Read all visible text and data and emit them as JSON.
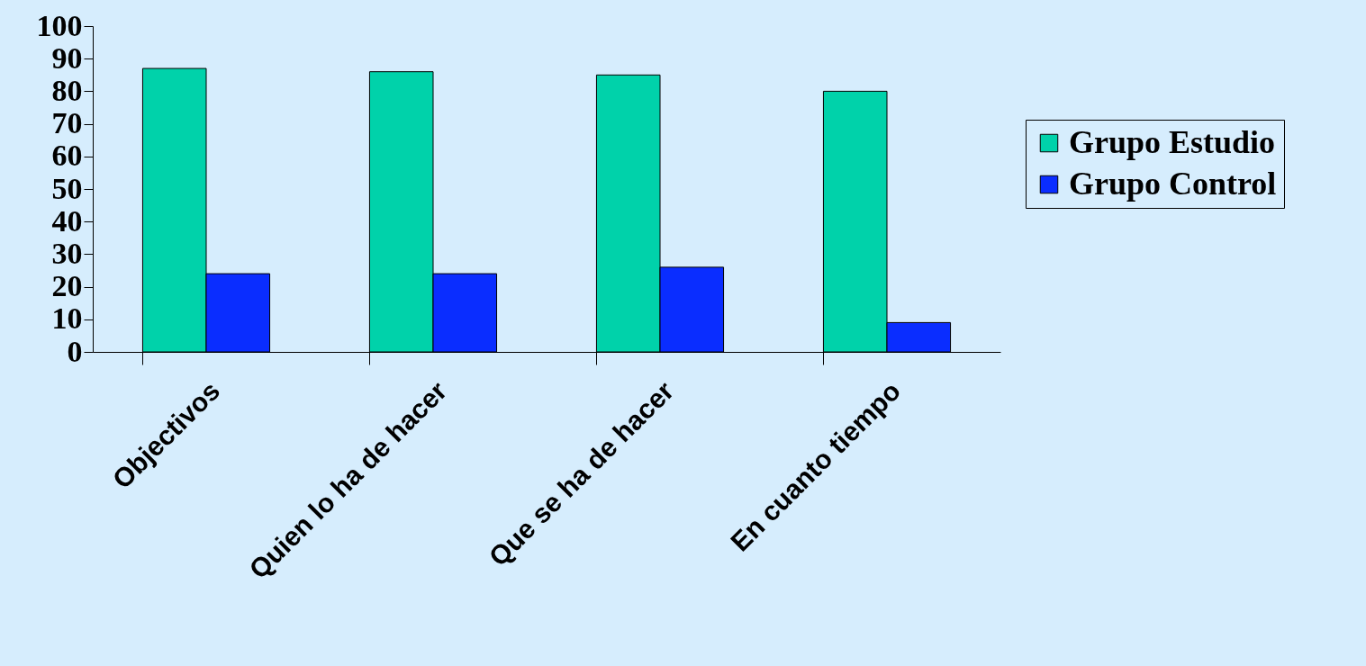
{
  "chart_data": {
    "type": "bar",
    "categories": [
      "Objectivos",
      "Quien lo ha de hacer",
      "Que se ha de hacer",
      "En cuanto tiempo"
    ],
    "series": [
      {
        "name": "Grupo Estudio",
        "color": "#00d2aa",
        "values": [
          87,
          86,
          85,
          80
        ]
      },
      {
        "name": "Grupo Control",
        "color": "#0a2dff",
        "values": [
          24,
          24,
          26,
          9
        ]
      }
    ],
    "ylim": [
      0,
      100
    ],
    "yticks": [
      0,
      10,
      20,
      30,
      40,
      50,
      60,
      70,
      80,
      90,
      100
    ],
    "grid": false,
    "legend": "right"
  }
}
